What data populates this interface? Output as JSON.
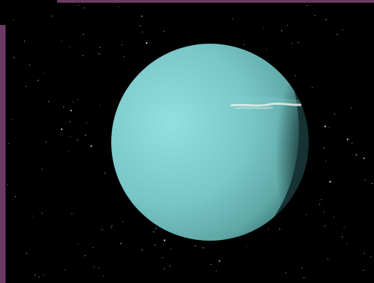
{
  "colors": {
    "background": "#000000",
    "frame_accent": "#6b3a63",
    "planet_highlight": "#92e0e2",
    "planet_mid": "#78c6c6",
    "planet_edge": "#5fa8a8",
    "planet_shadow": "#163232",
    "cloud_streak": "#e6f0ea"
  },
  "scene": {
    "subject": "planet-icon",
    "feature": "cloud-streak",
    "backdrop": "starfield"
  }
}
